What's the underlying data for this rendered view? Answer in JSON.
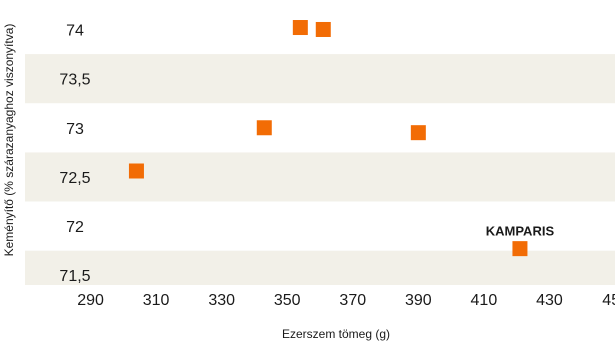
{
  "chart_data": {
    "type": "scatter",
    "xlabel": "Ezerszem tömeg (g)",
    "ylabel": "Keményítő (% szárazanyaghoz viszonyítva)",
    "xlim": [
      270,
      450
    ],
    "ylim": [
      71.4,
      74.3
    ],
    "x_ticks": [
      290,
      310,
      330,
      350,
      370,
      390,
      410,
      430,
      450
    ],
    "x_tick_labels": [
      "290",
      "310",
      "330",
      "350",
      "370",
      "390",
      "410",
      "430",
      "450"
    ],
    "y_ticks": [
      71.5,
      72,
      72.5,
      73,
      73.5,
      74
    ],
    "y_tick_labels": [
      "71,5",
      "72",
      "72,5",
      "73",
      "73,5",
      "74"
    ],
    "points": [
      {
        "x": 304,
        "y": 72.56,
        "label": ""
      },
      {
        "x": 343,
        "y": 73.0,
        "label": ""
      },
      {
        "x": 354,
        "y": 74.02,
        "label": ""
      },
      {
        "x": 361,
        "y": 74.0,
        "label": ""
      },
      {
        "x": 390,
        "y": 72.95,
        "label": ""
      },
      {
        "x": 421,
        "y": 71.77,
        "label": "KAMPARIS"
      }
    ],
    "colors": {
      "marker": "#F26C05",
      "band_light": "#F2F0E8",
      "band_white": "#FFFFFF",
      "text": "#1A1A1A"
    }
  }
}
